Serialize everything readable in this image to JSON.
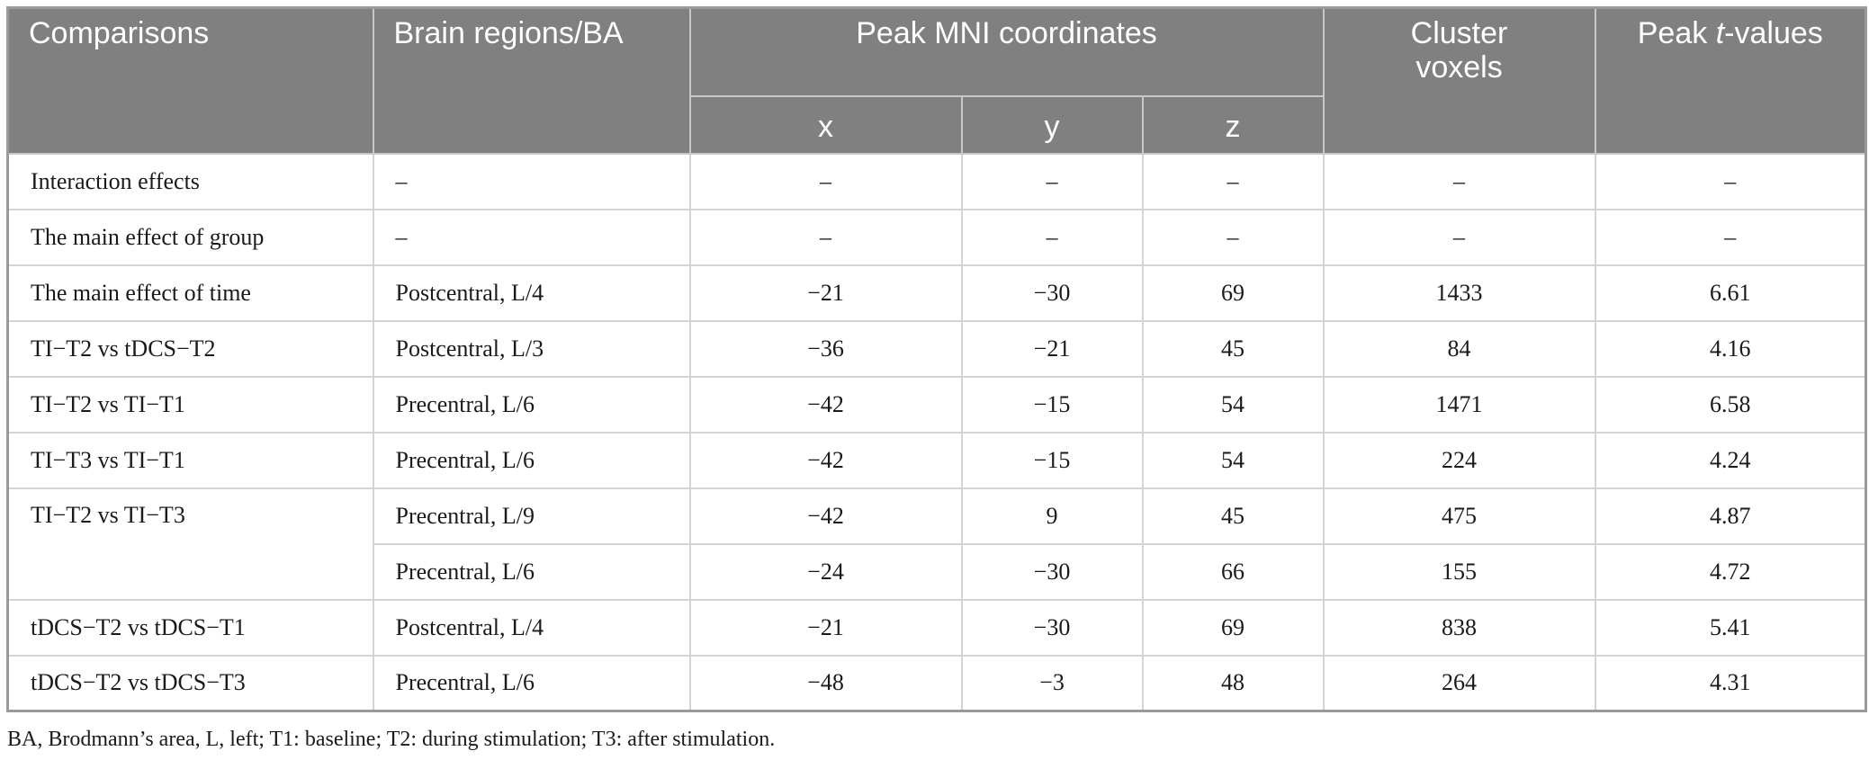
{
  "table": {
    "headers": {
      "comparisons": "Comparisons",
      "brain_regions": "Brain regions/BA",
      "peak_mni": "Peak MNI coordinates",
      "x": "x",
      "y": "y",
      "z": "z",
      "cluster_voxels_line1": "Cluster",
      "cluster_voxels_line2": "voxels",
      "peak_t_prefix": "Peak ",
      "peak_t_italic": "t",
      "peak_t_suffix": "-values"
    },
    "rows": [
      {
        "comparison": "Interaction effects",
        "region": "–",
        "x": "–",
        "y": "–",
        "z": "–",
        "voxels": "–",
        "t": "–"
      },
      {
        "comparison": "The main effect of group",
        "region": "–",
        "x": "–",
        "y": "–",
        "z": "–",
        "voxels": "–",
        "t": "–"
      },
      {
        "comparison": "The main effect of time",
        "region": "Postcentral, L/4",
        "x": "−21",
        "y": "−30",
        "z": "69",
        "voxels": "1433",
        "t": "6.61"
      },
      {
        "comparison": "TI−T2 vs tDCS−T2",
        "region": "Postcentral, L/3",
        "x": "−36",
        "y": "−21",
        "z": "45",
        "voxels": "84",
        "t": "4.16"
      },
      {
        "comparison": "TI−T2 vs TI−T1",
        "region": "Precentral, L/6",
        "x": "−42",
        "y": "−15",
        "z": "54",
        "voxels": "1471",
        "t": "6.58"
      },
      {
        "comparison": "TI−T3 vs TI−T1",
        "region": "Precentral, L/6",
        "x": "−42",
        "y": "−15",
        "z": "54",
        "voxels": "224",
        "t": "4.24"
      },
      {
        "comparison": "TI−T2 vs TI−T3",
        "region": "Precentral, L/9",
        "x": "−42",
        "y": "9",
        "z": "45",
        "voxels": "475",
        "t": "4.87"
      },
      {
        "comparison": "",
        "region": "Precentral, L/6",
        "x": "−24",
        "y": "−30",
        "z": "66",
        "voxels": "155",
        "t": "4.72"
      },
      {
        "comparison": "tDCS−T2 vs tDCS−T1",
        "region": "Postcentral, L/4",
        "x": "−21",
        "y": "−30",
        "z": "69",
        "voxels": "838",
        "t": "5.41"
      },
      {
        "comparison": "tDCS−T2 vs tDCS−T3",
        "region": "Precentral, L/6",
        "x": "−48",
        "y": "−3",
        "z": "48",
        "voxels": "264",
        "t": "4.31"
      }
    ]
  },
  "footnote": "BA, Brodmann’s area, L, left; T1: baseline; T2: during stimulation; T3: after stimulation.",
  "colors": {
    "header_bg": "#808080",
    "header_text": "#ffffff",
    "border": "#d4d4d4"
  }
}
